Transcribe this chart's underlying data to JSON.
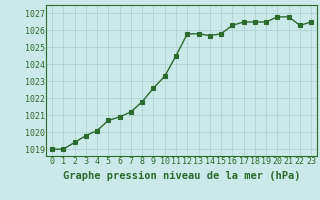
{
  "x": [
    0,
    1,
    2,
    3,
    4,
    5,
    6,
    7,
    8,
    9,
    10,
    11,
    12,
    13,
    14,
    15,
    16,
    17,
    18,
    19,
    20,
    21,
    22,
    23
  ],
  "y": [
    1019.0,
    1019.0,
    1019.4,
    1019.8,
    1020.1,
    1020.7,
    1020.9,
    1021.2,
    1021.8,
    1022.6,
    1023.3,
    1024.5,
    1025.8,
    1025.8,
    1025.7,
    1025.8,
    1026.3,
    1026.5,
    1026.5,
    1026.5,
    1026.8,
    1026.8,
    1026.3,
    1026.5
  ],
  "ylim_low": 1018.6,
  "ylim_high": 1027.5,
  "yticks": [
    1019,
    1020,
    1021,
    1022,
    1023,
    1024,
    1025,
    1026,
    1027
  ],
  "xticks": [
    0,
    1,
    2,
    3,
    4,
    5,
    6,
    7,
    8,
    9,
    10,
    11,
    12,
    13,
    14,
    15,
    16,
    17,
    18,
    19,
    20,
    21,
    22,
    23
  ],
  "xlabel": "Graphe pression niveau de la mer (hPa)",
  "line_color": "#2d6a2d",
  "marker": "s",
  "marker_size": 2.5,
  "line_width": 1.0,
  "bg_color": "#cce9e9",
  "grid_color": "#aacece",
  "xlabel_color": "#2d6a2d",
  "tick_label_color": "#2d6a2d",
  "xlabel_fontsize": 7.5,
  "tick_fontsize": 6.0
}
